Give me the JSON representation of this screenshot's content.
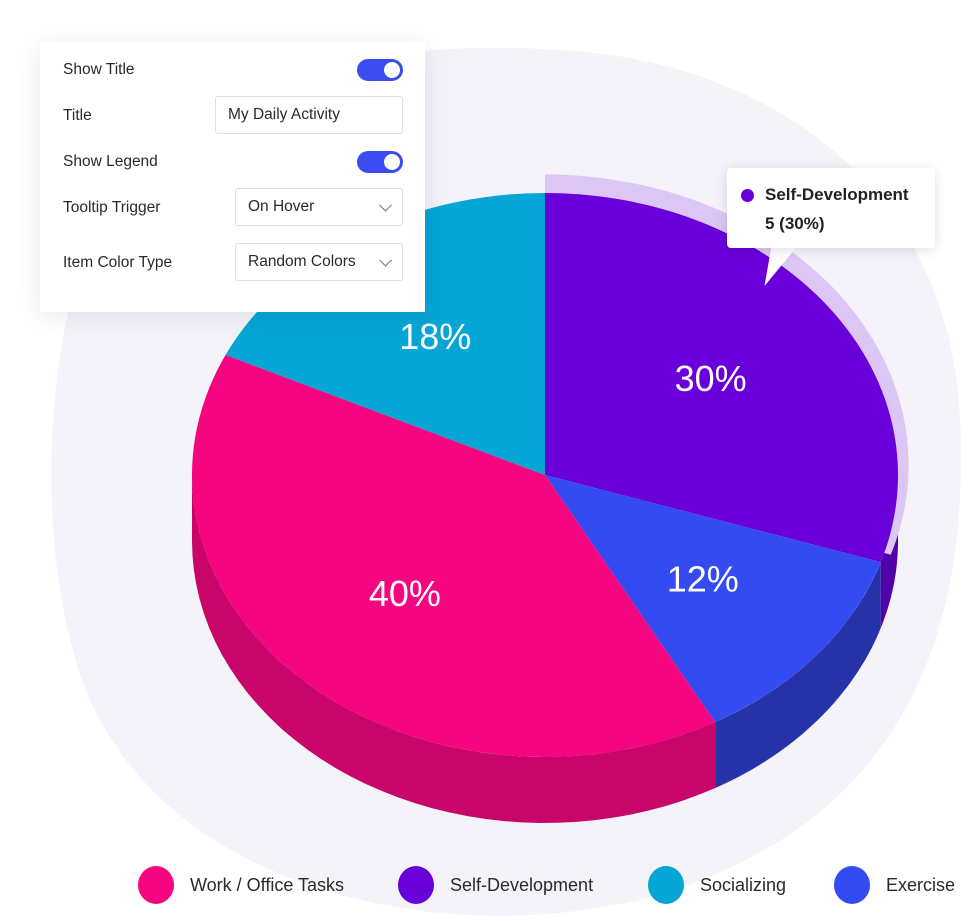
{
  "settings": {
    "show_title_label": "Show Title",
    "show_title_on": true,
    "title_label": "Title",
    "title_value": "My Daily Activity",
    "show_legend_label": "Show Legend",
    "show_legend_on": true,
    "tooltip_trigger_label": "Tooltip Trigger",
    "tooltip_trigger_value": "On Hover",
    "item_color_type_label": "Item Color Type",
    "item_color_type_value": "Random Colors"
  },
  "tooltip": {
    "name": "Self-Development",
    "value": "5 (30%)",
    "color": "#6a00d9"
  },
  "chart_data": {
    "type": "pie",
    "style": "3d",
    "categories": [
      "Self-Development",
      "Exercise",
      "Work / Office Tasks",
      "Socializing"
    ],
    "values": [
      30,
      12,
      40,
      18
    ],
    "labels": [
      "30%",
      "12%",
      "40%",
      "18%"
    ],
    "colors": [
      "#6a00d9",
      "#344bf2",
      "#f5057f",
      "#05a5d6"
    ],
    "side_colors": [
      "#5200a8",
      "#2633a8",
      "#c8066a",
      "#0483aa"
    ],
    "highlighted": "Self-Development",
    "legend_placement": "bottom"
  },
  "legend": [
    {
      "label": "Work / Office Tasks",
      "color": "#f5057f"
    },
    {
      "label": "Self-Development",
      "color": "#6a00d9"
    },
    {
      "label": "Socializing",
      "color": "#05a5d6"
    },
    {
      "label": "Exercise",
      "color": "#344bf2"
    }
  ],
  "colors": {
    "accent": "#3b4cf0",
    "background_blob": "#f3f3f9"
  }
}
